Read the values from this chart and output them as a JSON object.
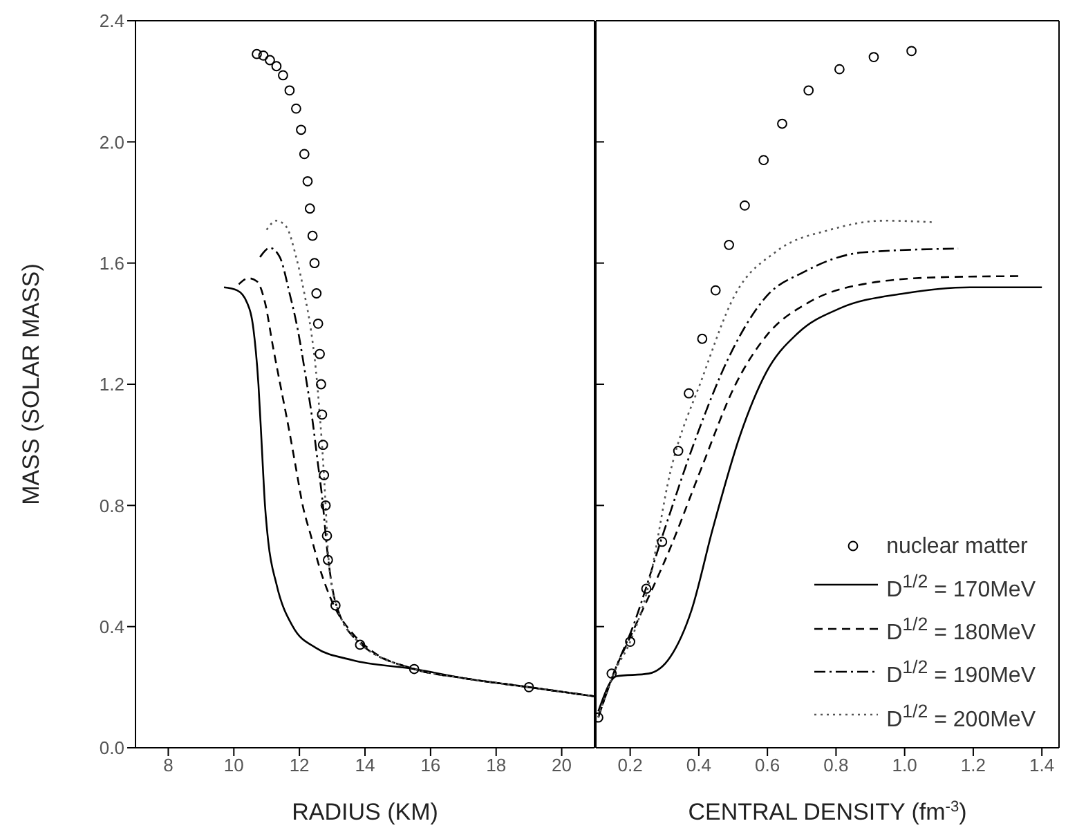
{
  "chart_data": [
    {
      "type": "line",
      "xlabel": "RADIUS (KM)",
      "ylabel": "MASS (SOLAR MASS)",
      "xlim": [
        7,
        21
      ],
      "xticks": [
        8,
        10,
        12,
        14,
        16,
        18,
        20
      ],
      "ylim": [
        0,
        2.4
      ],
      "yticks": [
        {
          "value": 0,
          "label": "0.0"
        },
        {
          "value": 0.4,
          "label": "0.4"
        },
        {
          "value": 0.8,
          "label": "0.8"
        },
        {
          "value": 1.2,
          "label": "1.2"
        },
        {
          "value": 1.6,
          "label": "1.6"
        },
        {
          "value": 2,
          "label": "2.0"
        },
        {
          "value": 2.4,
          "label": "2.4"
        }
      ],
      "grid": false,
      "series": [
        {
          "type": "scatter",
          "marker": "circle",
          "color": "#000000",
          "x": [
            10.7,
            10.9,
            11.1,
            11.3,
            11.5,
            11.7,
            11.9,
            12.05,
            12.15,
            12.25,
            12.32,
            12.4,
            12.46,
            12.52,
            12.57,
            12.62,
            12.66,
            12.69,
            12.72,
            12.75,
            12.8,
            12.84,
            12.87,
            13.1,
            13.85,
            15.5,
            19.0
          ],
          "values": [
            2.29,
            2.285,
            2.27,
            2.25,
            2.22,
            2.17,
            2.11,
            2.04,
            1.96,
            1.87,
            1.78,
            1.69,
            1.6,
            1.5,
            1.4,
            1.3,
            1.2,
            1.1,
            1.0,
            0.9,
            0.8,
            0.7,
            0.62,
            0.47,
            0.34,
            0.26,
            0.2
          ]
        },
        {
          "type": "line",
          "line_style": "solid",
          "color": "#000000",
          "x": [
            9.7,
            10.1,
            10.4,
            10.6,
            10.75,
            10.85,
            10.95,
            11.05,
            11.3,
            11.8,
            12.5,
            13.6,
            15.5,
            17,
            19,
            21
          ],
          "values": [
            1.52,
            1.51,
            1.47,
            1.38,
            1.2,
            1.0,
            0.8,
            0.68,
            0.54,
            0.4,
            0.33,
            0.29,
            0.26,
            0.23,
            0.2,
            0.17
          ]
        },
        {
          "type": "line",
          "line_style": "dashed",
          "color": "#000000",
          "x": [
            10.15,
            10.45,
            10.7,
            10.95,
            11.2,
            11.45,
            11.7,
            11.9,
            12.1,
            12.35,
            12.6,
            13.05,
            13.6,
            14.2,
            15.5,
            17,
            19,
            21
          ],
          "values": [
            1.53,
            1.55,
            1.54,
            1.47,
            1.32,
            1.18,
            1.04,
            0.92,
            0.8,
            0.7,
            0.6,
            0.47,
            0.38,
            0.32,
            0.26,
            0.23,
            0.2,
            0.17
          ]
        },
        {
          "type": "line",
          "line_style": "dashdot",
          "color": "#000000",
          "x": [
            10.8,
            11.1,
            11.4,
            11.7,
            11.95,
            12.2,
            12.4,
            12.55,
            12.7,
            12.85,
            13.1,
            13.8,
            15.5,
            17,
            19,
            21
          ],
          "values": [
            1.62,
            1.65,
            1.62,
            1.5,
            1.38,
            1.22,
            1.08,
            0.95,
            0.82,
            0.65,
            0.48,
            0.35,
            0.26,
            0.23,
            0.2,
            0.17
          ]
        },
        {
          "type": "line",
          "line_style": "dotted",
          "color": "#555555",
          "x": [
            11.0,
            11.3,
            11.6,
            11.9,
            12.15,
            12.35,
            12.5,
            12.62,
            12.72,
            12.8,
            12.87,
            13.1,
            13.8,
            15.5,
            17,
            19,
            21
          ],
          "values": [
            1.71,
            1.74,
            1.72,
            1.62,
            1.5,
            1.38,
            1.25,
            1.1,
            0.95,
            0.8,
            0.65,
            0.48,
            0.35,
            0.26,
            0.23,
            0.2,
            0.17
          ]
        }
      ]
    },
    {
      "type": "line",
      "xlabel": "CENTRAL DENSITY (fm$^{-3}$)",
      "xlim": [
        0.1,
        1.45
      ],
      "xticks": [
        0.2,
        0.4,
        0.6,
        0.8,
        {
          "value": 1,
          "label": "1.0"
        },
        1.2,
        1.4
      ],
      "ylim": [
        0,
        2.4
      ],
      "yticks": [
        0,
        0.4,
        0.8,
        1.2,
        1.6,
        2,
        2.4
      ],
      "tick_labels": "x",
      "grid": false,
      "legend": "bottom right",
      "series": [
        {
          "type": "scatter",
          "name": "nuclear matter",
          "marker": "circle",
          "color": "#000000",
          "x": [
            0.107,
            0.146,
            0.2,
            0.247,
            0.293,
            0.34,
            0.371,
            0.41,
            0.449,
            0.488,
            0.534,
            0.589,
            0.643,
            0.72,
            0.81,
            0.91,
            1.02
          ],
          "values": [
            0.1,
            0.245,
            0.35,
            0.525,
            0.68,
            0.98,
            1.17,
            1.35,
            1.51,
            1.66,
            1.79,
            1.94,
            2.06,
            2.17,
            2.24,
            2.28,
            2.3
          ]
        },
        {
          "type": "line",
          "name": "D$^{1/2}$ = 170MeV",
          "line_style": "solid",
          "color": "#000000",
          "x": [
            0.107,
            0.16,
            0.254,
            0.317,
            0.379,
            0.44,
            0.52,
            0.597,
            0.69,
            0.81,
            1.0,
            1.19,
            1.4
          ],
          "values": [
            0.12,
            0.236,
            0.245,
            0.3,
            0.455,
            0.72,
            1.03,
            1.24,
            1.37,
            1.45,
            1.5,
            1.52,
            1.52
          ]
        },
        {
          "type": "line",
          "name": "D$^{1/2}$ = 180MeV",
          "line_style": "dashed",
          "color": "#000000",
          "x": [
            0.107,
            0.15,
            0.208,
            0.317,
            0.41,
            0.503,
            0.597,
            0.72,
            0.877,
            1.094,
            1.34
          ],
          "values": [
            0.1,
            0.24,
            0.385,
            0.66,
            0.93,
            1.19,
            1.36,
            1.47,
            1.53,
            1.553,
            1.557
          ]
        },
        {
          "type": "line",
          "name": "D$^{1/2}$ = 190MeV",
          "line_style": "dashdot",
          "color": "#000000",
          "x": [
            0.107,
            0.15,
            0.208,
            0.3,
            0.394,
            0.488,
            0.597,
            0.705,
            0.877,
            1.156
          ],
          "values": [
            0.1,
            0.24,
            0.4,
            0.72,
            1.03,
            1.29,
            1.49,
            1.57,
            1.635,
            1.648
          ]
        },
        {
          "type": "line",
          "name": "D$^{1/2}$ = 200MeV",
          "line_style": "dotted",
          "color": "#555555",
          "x": [
            0.107,
            0.15,
            0.2,
            0.25,
            0.317,
            0.41,
            0.503,
            0.628,
            0.783,
            0.94,
            1.08
          ],
          "values": [
            0.1,
            0.24,
            0.35,
            0.52,
            0.91,
            1.22,
            1.49,
            1.64,
            1.71,
            1.74,
            1.735
          ]
        }
      ]
    }
  ]
}
